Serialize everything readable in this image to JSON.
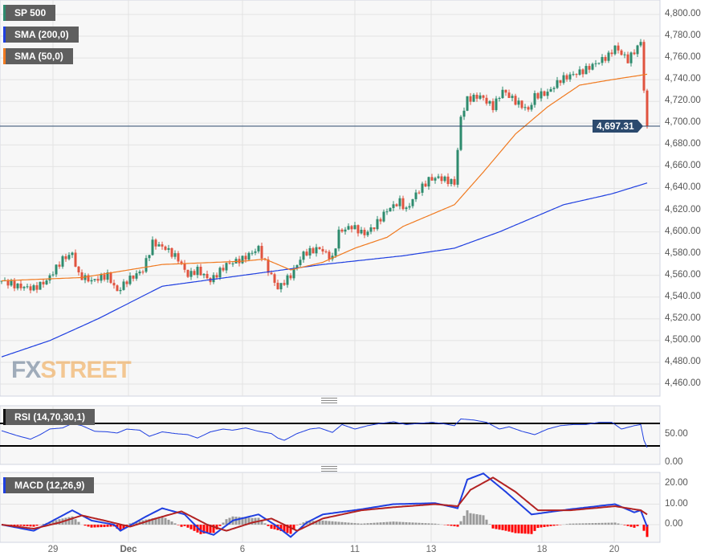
{
  "legend": {
    "price": "SP 500",
    "sma200": "SMA (200,0)",
    "sma50": "SMA (50,0)",
    "rsi": "RSI (14,70,30,1)",
    "macd": "MACD (12,26,9)"
  },
  "logo": {
    "fx": "FX",
    "street": "STREET"
  },
  "colors": {
    "up": "#2e8b6e",
    "down": "#e0533f",
    "sma200": "#1f3fe0",
    "sma50": "#f07a20",
    "macd": "#1f3fe0",
    "signal": "#b22222",
    "hist_pos": "#999999",
    "hist_neg": "#ff0000",
    "price_line": "#2c4a6e"
  },
  "chart_data": [
    {
      "type": "candlestick",
      "title": "SP 500",
      "last_price": "4,697.31",
      "ylim": [
        4445,
        4810
      ],
      "yticks": [
        "4,800.00",
        "4,780.00",
        "4,760.00",
        "4,740.00",
        "4,720.00",
        "4,700.00",
        "4,680.00",
        "4,660.00",
        "4,640.00",
        "4,620.00",
        "4,600.00",
        "4,580.00",
        "4,560.00",
        "4,540.00",
        "4,520.00",
        "4,500.00",
        "4,480.00",
        "4,460.00"
      ],
      "xticks": [
        {
          "label": "29",
          "bar": 16
        },
        {
          "label": "Dec",
          "bar": 39.5
        },
        {
          "label": "6",
          "bar": 75
        },
        {
          "label": "11",
          "bar": 110
        },
        {
          "label": "13",
          "bar": 133.75
        },
        {
          "label": "18",
          "bar": 168.25
        },
        {
          "label": "20",
          "bar": 190.75
        }
      ],
      "close": [
        [
          0,
          4555
        ],
        [
          5,
          4550
        ],
        [
          10,
          4548
        ],
        [
          14,
          4555
        ],
        [
          19,
          4575
        ],
        [
          22,
          4580
        ],
        [
          24,
          4560
        ],
        [
          28,
          4555
        ],
        [
          33,
          4560
        ],
        [
          36,
          4545
        ],
        [
          39,
          4555
        ],
        [
          44,
          4565
        ],
        [
          47,
          4590
        ],
        [
          51,
          4585
        ],
        [
          55,
          4575
        ],
        [
          58,
          4560
        ],
        [
          61,
          4565
        ],
        [
          65,
          4555
        ],
        [
          70,
          4570
        ],
        [
          75,
          4575
        ],
        [
          80,
          4585
        ],
        [
          83,
          4565
        ],
        [
          86,
          4548
        ],
        [
          90,
          4560
        ],
        [
          94,
          4580
        ],
        [
          99,
          4585
        ],
        [
          103,
          4575
        ],
        [
          105,
          4600
        ],
        [
          109,
          4605
        ],
        [
          113,
          4598
        ],
        [
          116,
          4605
        ],
        [
          120,
          4620
        ],
        [
          124,
          4628
        ],
        [
          126,
          4620
        ],
        [
          129,
          4635
        ],
        [
          133,
          4648
        ],
        [
          136,
          4650
        ],
        [
          141,
          4645
        ],
        [
          143,
          4705
        ],
        [
          145,
          4722
        ],
        [
          149,
          4725
        ],
        [
          153,
          4715
        ],
        [
          156,
          4730
        ],
        [
          160,
          4720
        ],
        [
          164,
          4712
        ],
        [
          166,
          4725
        ],
        [
          170,
          4728
        ],
        [
          174,
          4740
        ],
        [
          178,
          4745
        ],
        [
          181,
          4748
        ],
        [
          185,
          4755
        ],
        [
          189,
          4762
        ],
        [
          191,
          4770
        ],
        [
          195,
          4758
        ],
        [
          198,
          4770
        ],
        [
          199,
          4775
        ],
        [
          200,
          4730
        ],
        [
          201,
          4697.31
        ]
      ],
      "series": [
        {
          "name": "SMA (200,0)",
          "points": [
            [
              0,
              4485
            ],
            [
              15,
              4500
            ],
            [
              30,
              4520
            ],
            [
              50,
              4550
            ],
            [
              75,
              4560
            ],
            [
              100,
              4570
            ],
            [
              125,
              4578
            ],
            [
              141,
              4585
            ],
            [
              155,
              4600
            ],
            [
              175,
              4625
            ],
            [
              190,
              4635
            ],
            [
              201,
              4645
            ]
          ]
        },
        {
          "name": "SMA (50,0)",
          "points": [
            [
              0,
              4555
            ],
            [
              25,
              4558
            ],
            [
              50,
              4570
            ],
            [
              75,
              4573
            ],
            [
              82,
              4575
            ],
            [
              90,
              4565
            ],
            [
              100,
              4572
            ],
            [
              110,
              4585
            ],
            [
              120,
              4595
            ],
            [
              125,
              4605
            ],
            [
              133,
              4615
            ],
            [
              141,
              4625
            ],
            [
              150,
              4655
            ],
            [
              160,
              4690
            ],
            [
              170,
              4715
            ],
            [
              180,
              4735
            ],
            [
              190,
              4740
            ],
            [
              201,
              4745
            ]
          ]
        }
      ]
    },
    {
      "type": "line",
      "title": "RSI (14,70,30,1)",
      "ylim": [
        0,
        100
      ],
      "levels": [
        70,
        30
      ],
      "yticks": [
        "50.00",
        "0.00"
      ],
      "points": [
        [
          0,
          57
        ],
        [
          5,
          48
        ],
        [
          9,
          42
        ],
        [
          12,
          50
        ],
        [
          15,
          60
        ],
        [
          19,
          62
        ],
        [
          22,
          70
        ],
        [
          25,
          66
        ],
        [
          29,
          56
        ],
        [
          33,
          55
        ],
        [
          36,
          53
        ],
        [
          39,
          60
        ],
        [
          43,
          58
        ],
        [
          46,
          47
        ],
        [
          50,
          55
        ],
        [
          54,
          52
        ],
        [
          58,
          50
        ],
        [
          61,
          44
        ],
        [
          65,
          55
        ],
        [
          69,
          60
        ],
        [
          72,
          58
        ],
        [
          76,
          62
        ],
        [
          80,
          56
        ],
        [
          84,
          52
        ],
        [
          86,
          44
        ],
        [
          88,
          40
        ],
        [
          92,
          52
        ],
        [
          96,
          60
        ],
        [
          99,
          62
        ],
        [
          103,
          54
        ],
        [
          106,
          68
        ],
        [
          110,
          60
        ],
        [
          114,
          66
        ],
        [
          118,
          70
        ],
        [
          122,
          73
        ],
        [
          126,
          68
        ],
        [
          130,
          70
        ],
        [
          134,
          72
        ],
        [
          137,
          70
        ],
        [
          141,
          66
        ],
        [
          143,
          78
        ],
        [
          147,
          76
        ],
        [
          151,
          72
        ],
        [
          155,
          60
        ],
        [
          158,
          64
        ],
        [
          162,
          56
        ],
        [
          166,
          50
        ],
        [
          170,
          60
        ],
        [
          174,
          66
        ],
        [
          178,
          68
        ],
        [
          182,
          68
        ],
        [
          186,
          72
        ],
        [
          190,
          72
        ],
        [
          193,
          60
        ],
        [
          197,
          66
        ],
        [
          199,
          68
        ],
        [
          200,
          40
        ],
        [
          201,
          27
        ]
      ]
    },
    {
      "type": "line",
      "title": "MACD (12,26,9)",
      "ylim": [
        -9,
        28
      ],
      "yticks": [
        "20.00",
        "10.00",
        "0.00"
      ],
      "series": [
        {
          "name": "MACD",
          "points": [
            [
              0,
              0
            ],
            [
              10,
              -3
            ],
            [
              16,
              2
            ],
            [
              22,
              7
            ],
            [
              28,
              2
            ],
            [
              35,
              0
            ],
            [
              37,
              -3
            ],
            [
              45,
              4
            ],
            [
              50,
              8
            ],
            [
              57,
              5
            ],
            [
              62,
              -3
            ],
            [
              66,
              -5
            ],
            [
              72,
              2
            ],
            [
              80,
              5
            ],
            [
              85,
              0
            ],
            [
              90,
              -6
            ],
            [
              95,
              1
            ],
            [
              100,
              5
            ],
            [
              112,
              7.5
            ],
            [
              122,
              10
            ],
            [
              135,
              10.5
            ],
            [
              142,
              8
            ],
            [
              145,
              22
            ],
            [
              150,
              25
            ],
            [
              157,
              16
            ],
            [
              165,
              5
            ],
            [
              177,
              7.5
            ],
            [
              191,
              10
            ],
            [
              197,
              6
            ],
            [
              199,
              7
            ],
            [
              201,
              -1
            ]
          ]
        },
        {
          "name": "Signal",
          "points": [
            [
              0,
              0
            ],
            [
              10,
              -2
            ],
            [
              18,
              1
            ],
            [
              25,
              4.5
            ],
            [
              32,
              2
            ],
            [
              40,
              -1
            ],
            [
              48,
              3
            ],
            [
              56,
              6.5
            ],
            [
              64,
              0
            ],
            [
              70,
              -3
            ],
            [
              78,
              1
            ],
            [
              84,
              3
            ],
            [
              92,
              -3
            ],
            [
              100,
              3
            ],
            [
              112,
              7
            ],
            [
              122,
              8.5
            ],
            [
              135,
              10
            ],
            [
              142,
              9
            ],
            [
              146,
              17
            ],
            [
              153,
              23
            ],
            [
              160,
              16
            ],
            [
              167,
              7
            ],
            [
              177,
              7
            ],
            [
              191,
              9
            ],
            [
              199,
              7
            ],
            [
              201,
              5
            ]
          ]
        }
      ]
    }
  ]
}
